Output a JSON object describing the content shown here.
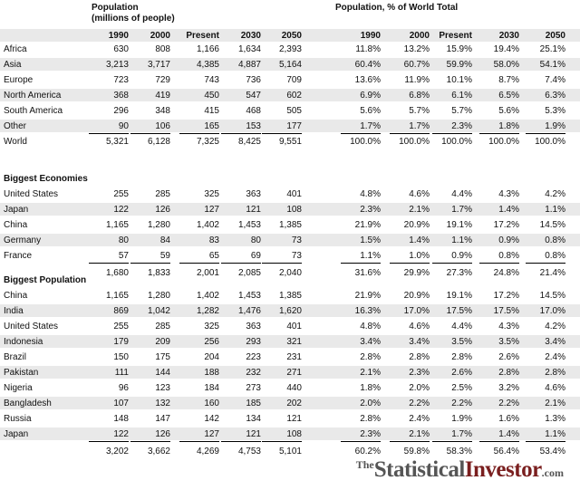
{
  "headings": {
    "population_line1": "Population",
    "population_line2": "(millions of people)",
    "share": "Population, % of World Total"
  },
  "columns": {
    "left": [
      "1990",
      "2000",
      "Present",
      "2030",
      "2050"
    ],
    "right": [
      "1990",
      "2000",
      "Present",
      "2030",
      "2050"
    ]
  },
  "regions": [
    {
      "label": "Africa",
      "pop": [
        "630",
        "808",
        "1,166",
        "1,634",
        "2,393"
      ],
      "pct": [
        "11.8%",
        "13.2%",
        "15.9%",
        "19.4%",
        "25.1%"
      ]
    },
    {
      "label": "Asia",
      "pop": [
        "3,213",
        "3,717",
        "4,385",
        "4,887",
        "5,164"
      ],
      "pct": [
        "60.4%",
        "60.7%",
        "59.9%",
        "58.0%",
        "54.1%"
      ]
    },
    {
      "label": "Europe",
      "pop": [
        "723",
        "729",
        "743",
        "736",
        "709"
      ],
      "pct": [
        "13.6%",
        "11.9%",
        "10.1%",
        "8.7%",
        "7.4%"
      ]
    },
    {
      "label": "North America",
      "pop": [
        "368",
        "419",
        "450",
        "547",
        "602"
      ],
      "pct": [
        "6.9%",
        "6.8%",
        "6.1%",
        "6.5%",
        "6.3%"
      ]
    },
    {
      "label": "South America",
      "pop": [
        "296",
        "348",
        "415",
        "468",
        "505"
      ],
      "pct": [
        "5.6%",
        "5.7%",
        "5.7%",
        "5.6%",
        "5.3%"
      ]
    },
    {
      "label": "Other",
      "pop": [
        "90",
        "106",
        "165",
        "153",
        "177"
      ],
      "pct": [
        "1.7%",
        "1.7%",
        "2.3%",
        "1.8%",
        "1.9%"
      ]
    }
  ],
  "world": {
    "label": "World",
    "pop": [
      "5,321",
      "6,128",
      "7,325",
      "8,425",
      "9,551"
    ],
    "pct": [
      "100.0%",
      "100.0%",
      "100.0%",
      "100.0%",
      "100.0%"
    ]
  },
  "economies_title": "Biggest Economies",
  "economies": [
    {
      "label": "United States",
      "pop": [
        "255",
        "285",
        "325",
        "363",
        "401"
      ],
      "pct": [
        "4.8%",
        "4.6%",
        "4.4%",
        "4.3%",
        "4.2%"
      ]
    },
    {
      "label": "Japan",
      "pop": [
        "122",
        "126",
        "127",
        "121",
        "108"
      ],
      "pct": [
        "2.3%",
        "2.1%",
        "1.7%",
        "1.4%",
        "1.1%"
      ]
    },
    {
      "label": "China",
      "pop": [
        "1,165",
        "1,280",
        "1,402",
        "1,453",
        "1,385"
      ],
      "pct": [
        "21.9%",
        "20.9%",
        "19.1%",
        "17.2%",
        "14.5%"
      ]
    },
    {
      "label": "Germany",
      "pop": [
        "80",
        "84",
        "83",
        "80",
        "73"
      ],
      "pct": [
        "1.5%",
        "1.4%",
        "1.1%",
        "0.9%",
        "0.8%"
      ]
    },
    {
      "label": "France",
      "pop": [
        "57",
        "59",
        "65",
        "69",
        "73"
      ],
      "pct": [
        "1.1%",
        "1.0%",
        "0.9%",
        "0.8%",
        "0.8%"
      ]
    }
  ],
  "economies_total": {
    "label": "",
    "pop": [
      "1,680",
      "1,833",
      "2,001",
      "2,085",
      "2,040"
    ],
    "pct": [
      "31.6%",
      "29.9%",
      "27.3%",
      "24.8%",
      "21.4%"
    ]
  },
  "population_title": "Biggest Population",
  "populous": [
    {
      "label": "China",
      "pop": [
        "1,165",
        "1,280",
        "1,402",
        "1,453",
        "1,385"
      ],
      "pct": [
        "21.9%",
        "20.9%",
        "19.1%",
        "17.2%",
        "14.5%"
      ]
    },
    {
      "label": "India",
      "pop": [
        "869",
        "1,042",
        "1,282",
        "1,476",
        "1,620"
      ],
      "pct": [
        "16.3%",
        "17.0%",
        "17.5%",
        "17.5%",
        "17.0%"
      ]
    },
    {
      "label": "United States",
      "pop": [
        "255",
        "285",
        "325",
        "363",
        "401"
      ],
      "pct": [
        "4.8%",
        "4.6%",
        "4.4%",
        "4.3%",
        "4.2%"
      ]
    },
    {
      "label": "Indonesia",
      "pop": [
        "179",
        "209",
        "256",
        "293",
        "321"
      ],
      "pct": [
        "3.4%",
        "3.4%",
        "3.5%",
        "3.5%",
        "3.4%"
      ]
    },
    {
      "label": "Brazil",
      "pop": [
        "150",
        "175",
        "204",
        "223",
        "231"
      ],
      "pct": [
        "2.8%",
        "2.8%",
        "2.8%",
        "2.6%",
        "2.4%"
      ]
    },
    {
      "label": "Pakistan",
      "pop": [
        "111",
        "144",
        "188",
        "232",
        "271"
      ],
      "pct": [
        "2.1%",
        "2.3%",
        "2.6%",
        "2.8%",
        "2.8%"
      ]
    },
    {
      "label": "Nigeria",
      "pop": [
        "96",
        "123",
        "184",
        "273",
        "440"
      ],
      "pct": [
        "1.8%",
        "2.0%",
        "2.5%",
        "3.2%",
        "4.6%"
      ]
    },
    {
      "label": "Bangladesh",
      "pop": [
        "107",
        "132",
        "160",
        "185",
        "202"
      ],
      "pct": [
        "2.0%",
        "2.2%",
        "2.2%",
        "2.2%",
        "2.1%"
      ]
    },
    {
      "label": "Russia",
      "pop": [
        "148",
        "147",
        "142",
        "134",
        "121"
      ],
      "pct": [
        "2.8%",
        "2.4%",
        "1.9%",
        "1.6%",
        "1.3%"
      ]
    },
    {
      "label": "Japan",
      "pop": [
        "122",
        "126",
        "127",
        "121",
        "108"
      ],
      "pct": [
        "2.3%",
        "2.1%",
        "1.7%",
        "1.4%",
        "1.1%"
      ]
    }
  ],
  "populous_total": {
    "label": "",
    "pop": [
      "3,202",
      "3,662",
      "4,269",
      "4,753",
      "5,101"
    ],
    "pct": [
      "60.2%",
      "59.8%",
      "58.3%",
      "56.4%",
      "53.4%"
    ]
  },
  "logo": {
    "prefix": "The",
    "word1": "Statistical",
    "word2": "Investor",
    "suffix": ".com",
    "color_dark": "#555555",
    "color_accent": "#7a1f1f"
  }
}
